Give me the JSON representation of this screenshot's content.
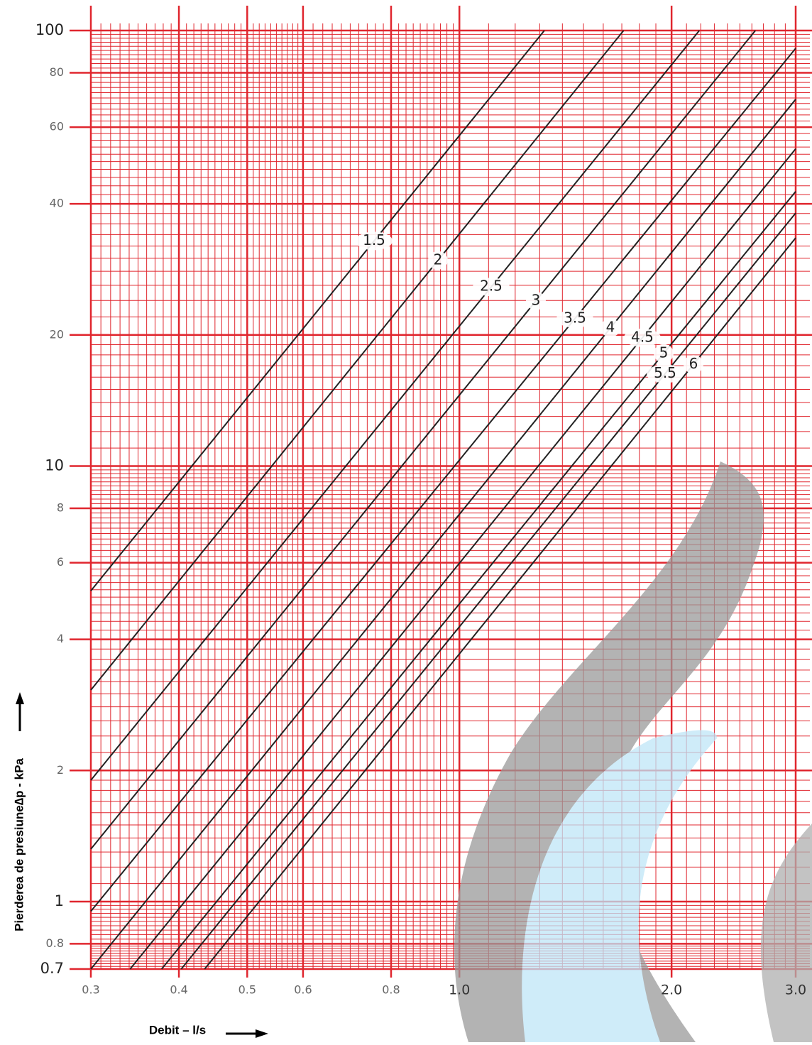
{
  "chart_data": {
    "type": "line",
    "log_x": true,
    "log_y": true,
    "grid": true,
    "x_label": "Debit – l/s",
    "y_label": "Pierderea de presiune∆p - kPa",
    "xlim": [
      0.3,
      3.0
    ],
    "ylim": [
      0.7,
      100
    ],
    "xticks": [
      0.3,
      0.4,
      0.5,
      0.6,
      0.8,
      {
        "value": 1.0,
        "label": "1.0"
      },
      {
        "value": 2.0,
        "label": "2.0"
      },
      {
        "value": 3.0,
        "label": "3.0"
      }
    ],
    "yticks": [
      100,
      80,
      60,
      40,
      20,
      10,
      8,
      6,
      4,
      2,
      1,
      0.8,
      0.7
    ],
    "series": [
      {
        "name": "1.5",
        "color": "#222222",
        "x": [
          0.3,
          1.32
        ],
        "values": [
          5.17,
          100
        ]
      },
      {
        "name": "2",
        "color": "#222222",
        "x": [
          0.3,
          1.71
        ],
        "values": [
          3.06,
          100
        ]
      },
      {
        "name": "2.5",
        "color": "#222222",
        "x": [
          0.3,
          2.19
        ],
        "values": [
          1.9,
          100
        ]
      },
      {
        "name": "3",
        "color": "#222222",
        "x": [
          0.3,
          2.63
        ],
        "values": [
          1.32,
          100
        ]
      },
      {
        "name": "3.5",
        "color": "#222222",
        "x": [
          0.3,
          3.0
        ],
        "values": [
          0.95,
          91
        ]
      },
      {
        "name": "4",
        "color": "#222222",
        "x": [
          0.3,
          3.0
        ],
        "values": [
          0.7,
          69.5
        ]
      },
      {
        "name": "4.5",
        "color": "#222222",
        "x": [
          0.341,
          3.0
        ],
        "values": [
          0.7,
          53.5
        ]
      },
      {
        "name": "5",
        "color": "#222222",
        "x": [
          0.378,
          3.0
        ],
        "values": [
          0.7,
          42.7
        ]
      },
      {
        "name": "5.5",
        "color": "#222222",
        "x": [
          0.403,
          3.0
        ],
        "values": [
          0.7,
          38.1
        ]
      },
      {
        "name": "6",
        "color": "#222222",
        "x": [
          0.435,
          3.0
        ],
        "values": [
          0.7,
          33.4
        ]
      }
    ]
  }
}
